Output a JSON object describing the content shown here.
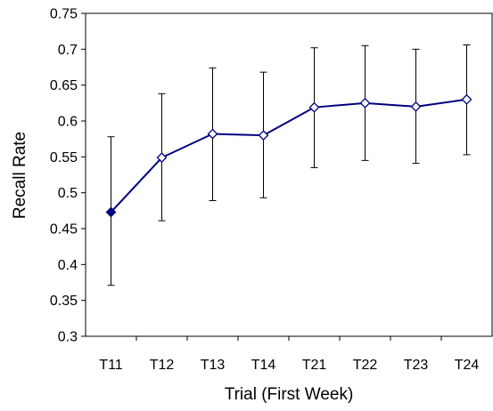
{
  "chart_data": {
    "type": "line",
    "title": "",
    "xlabel": "Trial (First Week)",
    "ylabel": "Recall Rate",
    "categories": [
      "T11",
      "T12",
      "T13",
      "T14",
      "T21",
      "T22",
      "T23",
      "T24"
    ],
    "series": [
      {
        "values": [
          0.473,
          0.549,
          0.582,
          0.58,
          0.619,
          0.625,
          0.62,
          0.63
        ],
        "error_low": [
          0.371,
          0.461,
          0.489,
          0.493,
          0.535,
          0.545,
          0.541,
          0.553
        ],
        "error_high": [
          0.578,
          0.638,
          0.674,
          0.668,
          0.702,
          0.705,
          0.7,
          0.706
        ],
        "marker": "diamond",
        "color": "#00007f"
      }
    ],
    "ylim": [
      0.3,
      0.75
    ],
    "yticks": [
      "0.3",
      "0.35",
      "0.4",
      "0.45",
      "0.5",
      "0.55",
      "0.6",
      "0.65",
      "0.7",
      "0.75"
    ],
    "grid": false,
    "legend": "none"
  }
}
